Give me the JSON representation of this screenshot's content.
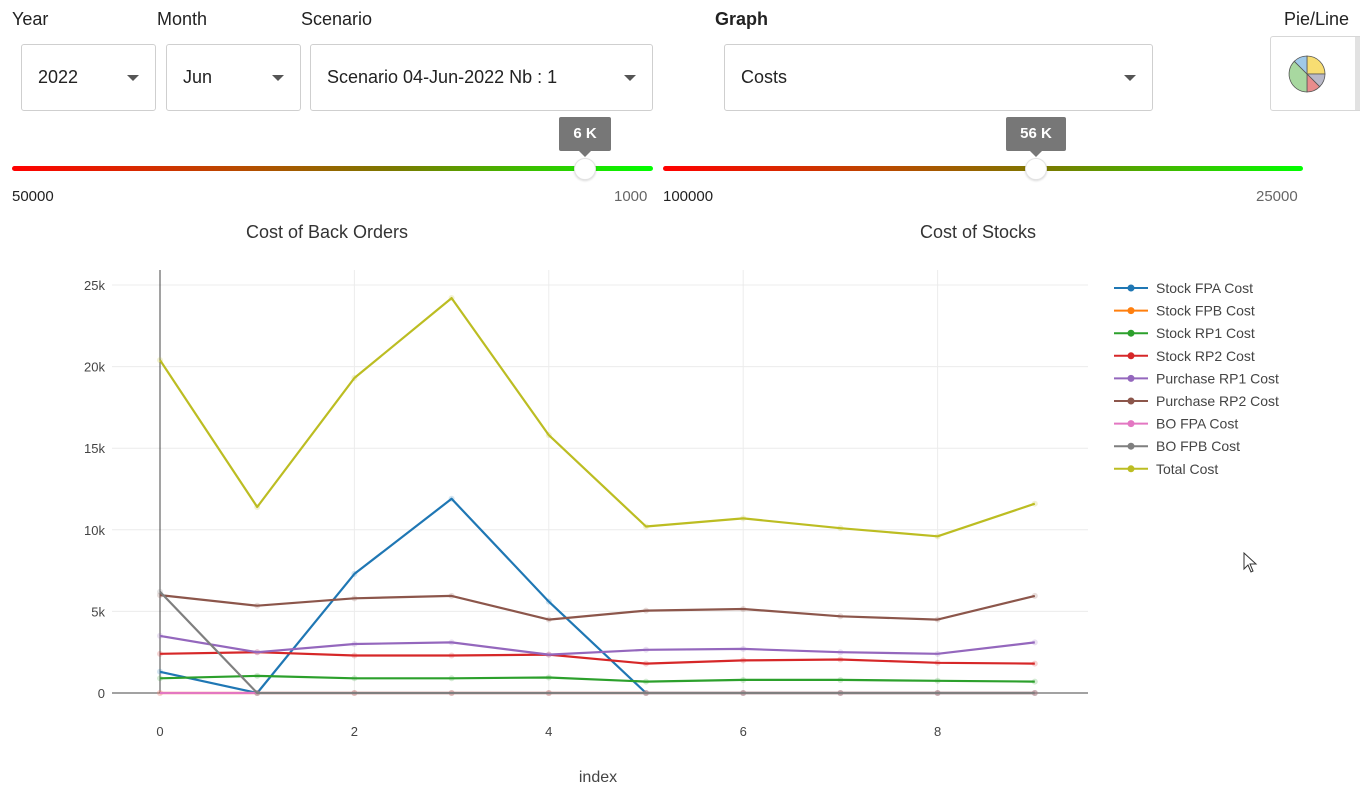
{
  "filters": {
    "year": {
      "label": "Year",
      "value": "2022"
    },
    "month": {
      "label": "Month",
      "value": "Jun"
    },
    "scenario": {
      "label": "Scenario",
      "value": "Scenario 04-Jun-2022 Nb : 1"
    },
    "graph": {
      "label": "Graph",
      "value": "Costs"
    },
    "pie_line": {
      "label": "Pie/Line"
    }
  },
  "sliders": {
    "back_orders": {
      "min_label": "50000",
      "max_label": "1000",
      "value_label": "6 K",
      "value": 6000,
      "title": "Cost of Back Orders"
    },
    "stocks": {
      "min_label": "100000",
      "max_label": "25000",
      "value_label": "56 K",
      "value": 56000,
      "title": "Cost of Stocks"
    }
  },
  "colors": {
    "Stock FPA Cost": "#1f77b4",
    "Stock FPB Cost": "#ff7f0e",
    "Stock RP1 Cost": "#2ca02c",
    "Stock RP2 Cost": "#d62728",
    "Purchase RP1 Cost": "#9467bd",
    "Purchase RP2 Cost": "#8c564b",
    "BO FPA Cost": "#e377c2",
    "BO FPB Cost": "#7f7f7f",
    "Total Cost": "#bcbd22"
  },
  "chart_data": {
    "type": "line",
    "xlabel": "index",
    "ylabel": "",
    "x": [
      0,
      1,
      2,
      3,
      4,
      5,
      6,
      7,
      8,
      9
    ],
    "xlim": [
      0,
      9.5
    ],
    "ylim": [
      0,
      25000
    ],
    "xticks": [
      0,
      2,
      4,
      6,
      8
    ],
    "yticks": [
      0,
      5000,
      10000,
      15000,
      20000,
      25000
    ],
    "ytick_labels": [
      "0",
      "5k",
      "10k",
      "15k",
      "20k",
      "25k"
    ],
    "legend_position": "top-right",
    "series": [
      {
        "name": "Stock FPA Cost",
        "values": [
          1300,
          0,
          7300,
          11900,
          5600,
          0,
          0,
          0,
          0,
          0
        ]
      },
      {
        "name": "Stock FPB Cost",
        "values": [
          0,
          0,
          0,
          0,
          0,
          0,
          0,
          0,
          0,
          0
        ]
      },
      {
        "name": "Stock RP1 Cost",
        "values": [
          900,
          1050,
          900,
          900,
          950,
          700,
          800,
          800,
          750,
          700
        ]
      },
      {
        "name": "Stock RP2 Cost",
        "values": [
          2400,
          2500,
          2300,
          2300,
          2350,
          1800,
          2000,
          2050,
          1850,
          1800
        ]
      },
      {
        "name": "Purchase RP1 Cost",
        "values": [
          3500,
          2500,
          3000,
          3100,
          2350,
          2650,
          2700,
          2500,
          2400,
          3100
        ]
      },
      {
        "name": "Purchase RP2 Cost",
        "values": [
          6000,
          5350,
          5800,
          5950,
          4500,
          5050,
          5150,
          4700,
          4500,
          5950
        ]
      },
      {
        "name": "BO FPA Cost",
        "values": [
          0,
          0,
          0,
          0,
          0,
          0,
          0,
          0,
          0,
          0
        ]
      },
      {
        "name": "BO FPB Cost",
        "values": [
          6200,
          0,
          0,
          0,
          0,
          0,
          0,
          0,
          0,
          0
        ]
      },
      {
        "name": "Total Cost",
        "values": [
          20400,
          11400,
          19300,
          24200,
          15800,
          10200,
          10700,
          10100,
          9600,
          11600
        ]
      }
    ]
  }
}
